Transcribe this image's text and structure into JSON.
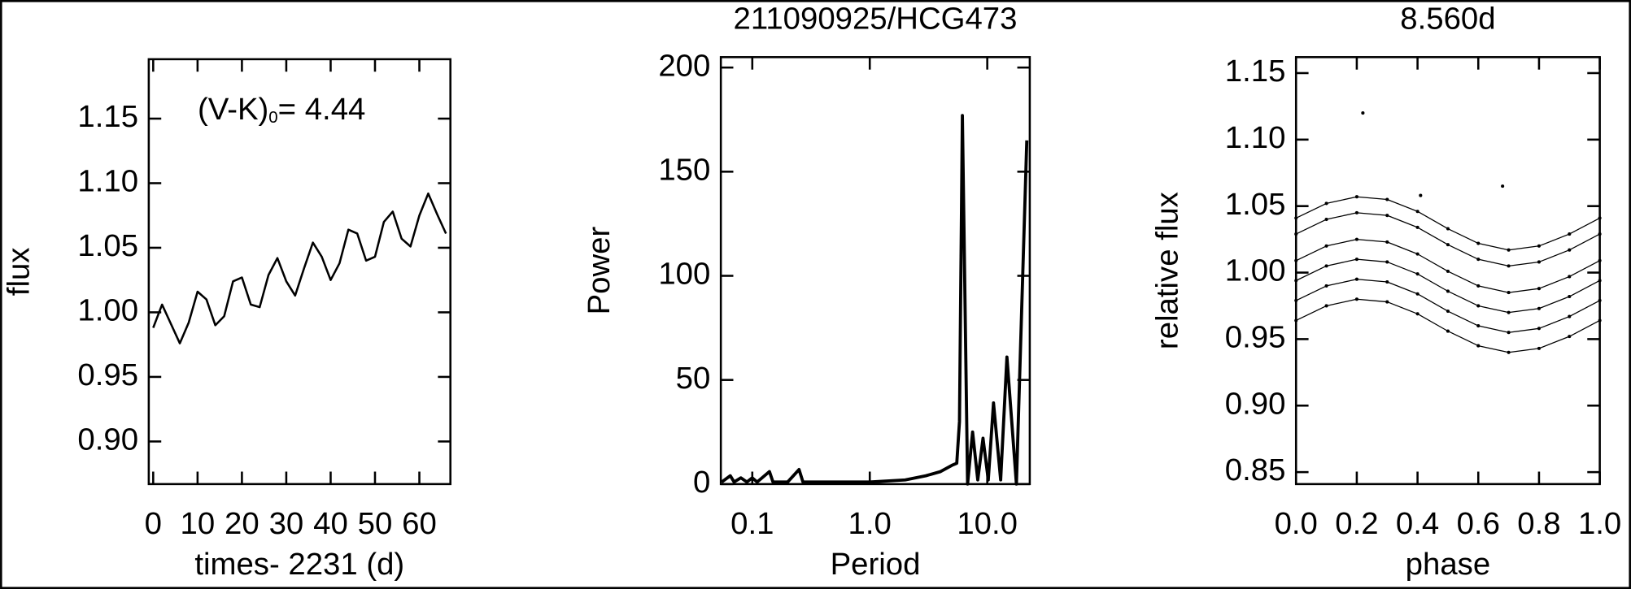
{
  "chart_data": [
    {
      "type": "line",
      "xlabel": "times- 2231 (d)",
      "ylabel": "flux",
      "annotation": {
        "text": "(V-K)",
        "subscript": "0",
        "value_text": "= 4.44"
      },
      "x": [
        0,
        2,
        4,
        6,
        8,
        10,
        12,
        14,
        16,
        18,
        20,
        22,
        24,
        26,
        28,
        30,
        32,
        34,
        36,
        38,
        40,
        42,
        44,
        46,
        48,
        50,
        52,
        54,
        56,
        58,
        60,
        62,
        64,
        66
      ],
      "series": [
        {
          "color": "#000000",
          "values": [
            0.988,
            1.006,
            0.991,
            0.976,
            0.992,
            1.016,
            1.01,
            0.99,
            0.997,
            1.024,
            1.027,
            1.006,
            1.004,
            1.029,
            1.042,
            1.024,
            1.013,
            1.034,
            1.054,
            1.043,
            1.025,
            1.038,
            1.064,
            1.061,
            1.04,
            1.043,
            1.07,
            1.078,
            1.057,
            1.051,
            1.075,
            1.092,
            1.076,
            1.061
          ]
        }
      ],
      "xlim": [
        -1,
        67
      ],
      "xticks": [
        0,
        10,
        20,
        30,
        40,
        50,
        60
      ],
      "ylim": [
        0.867,
        1.196
      ],
      "yticks": [
        {
          "value": 0.9,
          "label": "0.90"
        },
        0.95,
        {
          "value": 1,
          "label": "1.00"
        },
        1.05,
        {
          "value": 1.1,
          "label": "1.10"
        },
        1.15
      ]
    },
    {
      "type": "line",
      "title": "211090925/HCG473",
      "xlabel": "Period",
      "ylabel": "Power",
      "log_x": true,
      "x": [
        0.055,
        0.065,
        0.07,
        0.08,
        0.09,
        0.1,
        0.11,
        0.14,
        0.15,
        0.2,
        0.25,
        0.27,
        0.5,
        1.0,
        2.0,
        3.0,
        4.0,
        5.0,
        5.5,
        5.8,
        6.14,
        6.8,
        7.5,
        8.3,
        9.2,
        10.2,
        11.3,
        13.0,
        14.7,
        17.7,
        21.7
      ],
      "series": [
        {
          "color": "#000000",
          "values": [
            1,
            4,
            1,
            3,
            1,
            3,
            1,
            6,
            1,
            1,
            7,
            1,
            1,
            1,
            2,
            4,
            6,
            9,
            10,
            30,
            177,
            0,
            25,
            2,
            22,
            2,
            39,
            2,
            61,
            0,
            165
          ]
        }
      ],
      "xlim": [
        0.054,
        23
      ],
      "xticks": [
        0.1,
        {
          "value": 1,
          "label": "1.0"
        },
        {
          "value": 10,
          "label": "10.0"
        }
      ],
      "ylim": [
        0,
        205
      ],
      "yticks": [
        0,
        50,
        100,
        150,
        200
      ]
    },
    {
      "type": "scatter",
      "title": "8.560d",
      "xlabel": "phase",
      "ylabel": "relative flux",
      "x": [
        0,
        0.1,
        0.2,
        0.3,
        0.4,
        0.5,
        0.6,
        0.7,
        0.8,
        0.9,
        1.0
      ],
      "series": [
        {
          "color": "#000000",
          "line": true,
          "values": [
            1.041,
            1.052,
            1.057,
            1.055,
            1.046,
            1.033,
            1.022,
            1.017,
            1.02,
            1.029,
            1.041
          ]
        },
        {
          "color": "#000000",
          "line": true,
          "values": [
            1.029,
            1.04,
            1.045,
            1.043,
            1.034,
            1.021,
            1.01,
            1.005,
            1.008,
            1.017,
            1.029
          ]
        },
        {
          "color": "#000000",
          "line": true,
          "values": [
            1.009,
            1.02,
            1.025,
            1.023,
            1.014,
            1.001,
            0.99,
            0.985,
            0.988,
            0.997,
            1.009
          ]
        },
        {
          "color": "#000000",
          "line": true,
          "values": [
            0.994,
            1.005,
            1.01,
            1.008,
            0.999,
            0.986,
            0.975,
            0.97,
            0.973,
            0.982,
            0.994
          ]
        },
        {
          "color": "#000000",
          "line": true,
          "values": [
            0.979,
            0.99,
            0.995,
            0.993,
            0.984,
            0.971,
            0.96,
            0.955,
            0.958,
            0.967,
            0.979
          ]
        },
        {
          "color": "#000000",
          "line": true,
          "values": [
            0.964,
            0.975,
            0.98,
            0.978,
            0.969,
            0.956,
            0.945,
            0.94,
            0.943,
            0.952,
            0.964
          ]
        },
        {
          "color": "#000000",
          "x": [
            0.22,
            0.68,
            0.41
          ],
          "values": [
            1.12,
            1.065,
            1.058
          ]
        }
      ],
      "xlim": [
        0,
        1
      ],
      "xticks": [
        {
          "value": 0,
          "label": "0.0"
        },
        0.2,
        0.4,
        0.6,
        0.8,
        {
          "value": 1,
          "label": "1.0"
        }
      ],
      "ylim": [
        0.841,
        1.162
      ],
      "yticks": [
        0.85,
        {
          "value": 0.9,
          "label": "0.90"
        },
        0.95,
        {
          "value": 1,
          "label": "1.00"
        },
        1.05,
        {
          "value": 1.1,
          "label": "1.10"
        },
        1.15
      ]
    }
  ]
}
